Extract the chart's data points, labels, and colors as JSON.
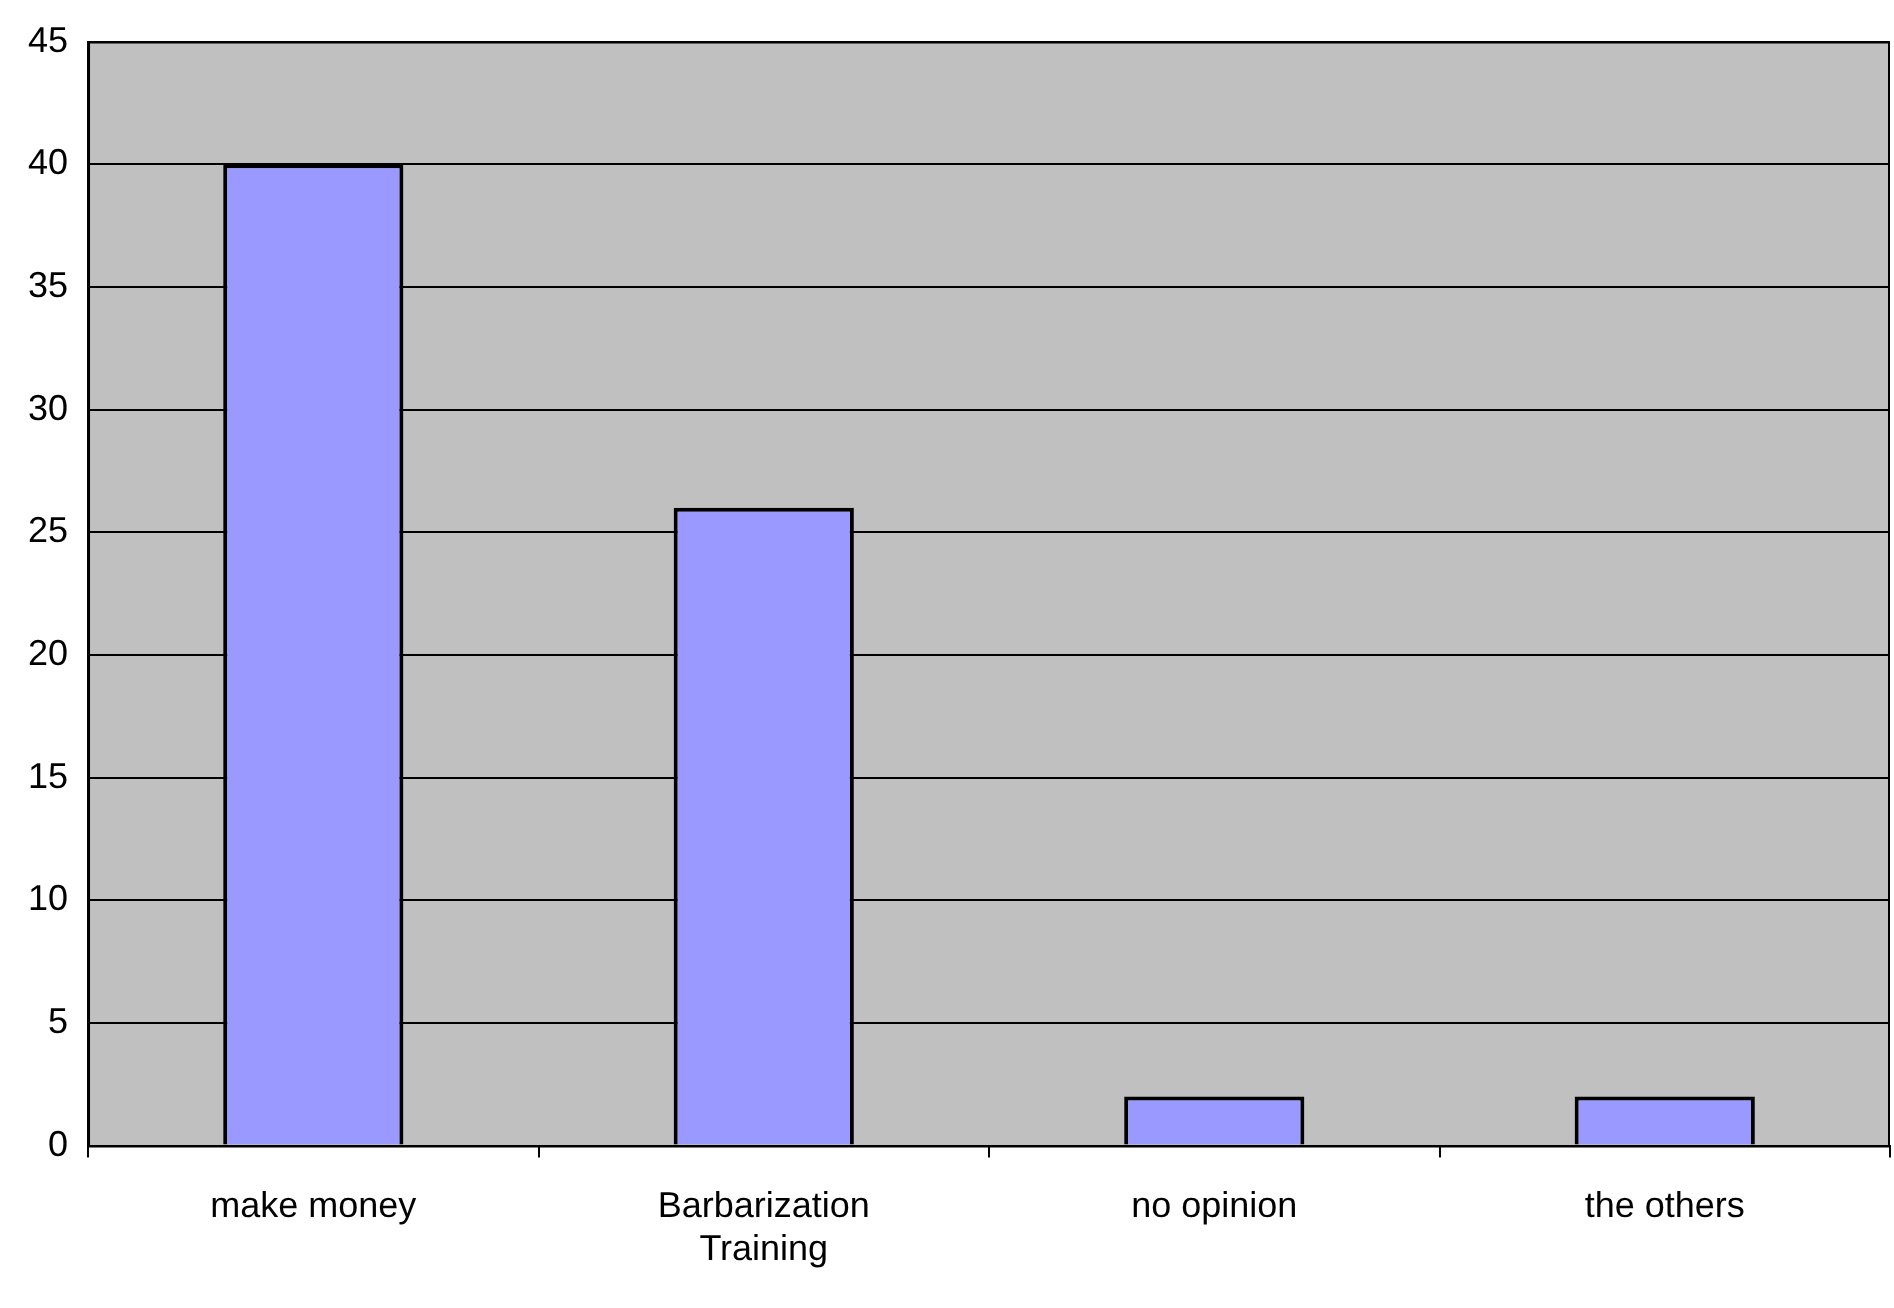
{
  "chart_data": {
    "type": "bar",
    "categories": [
      "make money",
      "Barbarization Training",
      "no opinion",
      "the others"
    ],
    "values": [
      40,
      26,
      2,
      2
    ],
    "color": "#9999ff",
    "ylim": [
      0,
      45
    ],
    "yticks": [
      0,
      5,
      10,
      15,
      20,
      25,
      30,
      35,
      40,
      45
    ],
    "grid": "y"
  }
}
